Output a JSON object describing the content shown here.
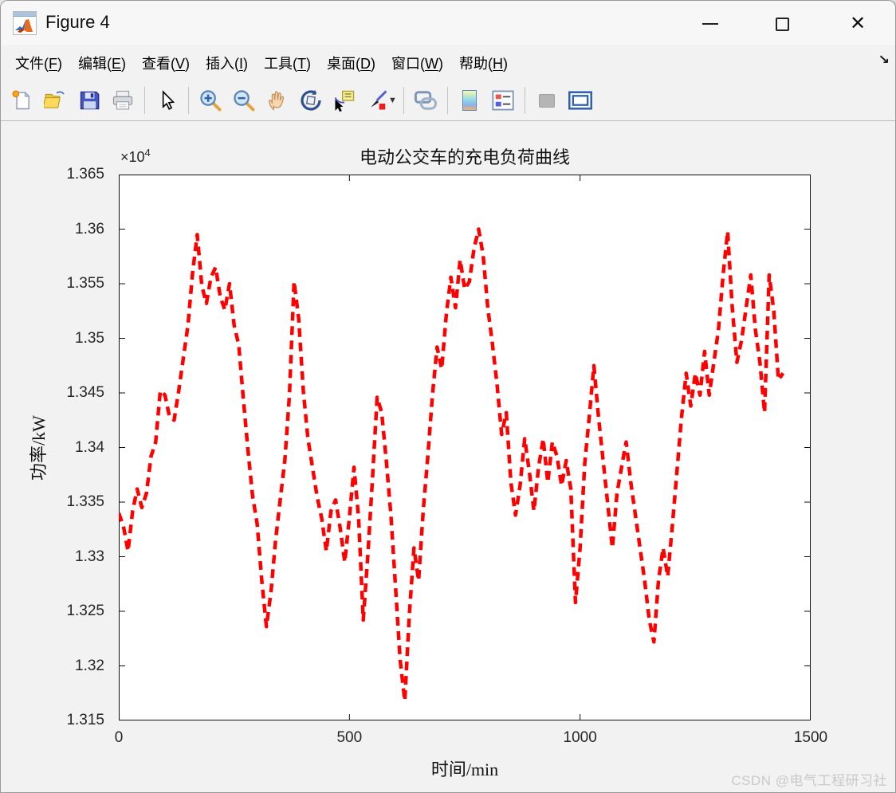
{
  "window": {
    "title": "Figure 4",
    "controls": {
      "minimize": "minimize",
      "maximize": "maximize",
      "close": "close",
      "dock": "dock-figure"
    }
  },
  "menu": {
    "items": [
      {
        "pre": "文件(",
        "key": "F",
        "post": ")"
      },
      {
        "pre": "编辑(",
        "key": "E",
        "post": ")"
      },
      {
        "pre": "查看(",
        "key": "V",
        "post": ")"
      },
      {
        "pre": "插入(",
        "key": "I",
        "post": ")"
      },
      {
        "pre": "工具(",
        "key": "T",
        "post": ")"
      },
      {
        "pre": "桌面(",
        "key": "D",
        "post": ")"
      },
      {
        "pre": "窗口(",
        "key": "W",
        "post": ")"
      },
      {
        "pre": "帮助(",
        "key": "H",
        "post": ")"
      }
    ]
  },
  "toolbar": {
    "icons": [
      "new-figure",
      "open-file",
      "save-figure",
      "print-figure",
      "edit-plot-pointer",
      "zoom-in",
      "zoom-out",
      "pan",
      "rotate-3d",
      "data-cursor",
      "brush-data",
      "brush-dropdown",
      "link-plot",
      "insert-colorbar",
      "insert-legend",
      "hide-plot-tools",
      "show-plot-tools"
    ]
  },
  "watermark": "CSDN @电气工程研习社",
  "chart_data": {
    "type": "line",
    "title": "电动公交车的充电负荷曲线",
    "xlabel": "时间/min",
    "ylabel": "功率/kW",
    "y_scale_note": "y values are power in units of 1e4 kW (axis exponent ×10^4)",
    "y_exponent_base": "×10",
    "y_exponent_power": "4",
    "xlim": [
      0,
      1500
    ],
    "ylim": [
      1.315,
      1.365
    ],
    "x_ticks": [
      0,
      500,
      1000,
      1500
    ],
    "x_tick_labels": [
      "0",
      "500",
      "1000",
      "1500"
    ],
    "y_ticks": [
      1.315,
      1.32,
      1.325,
      1.33,
      1.335,
      1.34,
      1.345,
      1.35,
      1.355,
      1.36,
      1.365
    ],
    "y_tick_labels": [
      "1.315",
      "1.32",
      "1.325",
      "1.33",
      "1.335",
      "1.34",
      "1.345",
      "1.35",
      "1.355",
      "1.36",
      "1.365"
    ],
    "grid": false,
    "legend": null,
    "line_color": "#ff0000",
    "line_style": "dashed",
    "line_width": 4.5,
    "x": [
      0,
      10,
      20,
      30,
      40,
      50,
      60,
      70,
      80,
      90,
      100,
      110,
      120,
      130,
      140,
      150,
      160,
      170,
      180,
      190,
      200,
      210,
      220,
      230,
      240,
      250,
      260,
      270,
      280,
      290,
      300,
      310,
      320,
      330,
      340,
      350,
      360,
      370,
      380,
      390,
      400,
      410,
      420,
      430,
      440,
      450,
      460,
      470,
      480,
      490,
      500,
      510,
      520,
      530,
      540,
      550,
      560,
      570,
      580,
      590,
      600,
      610,
      620,
      630,
      640,
      650,
      660,
      670,
      680,
      690,
      700,
      710,
      720,
      730,
      740,
      750,
      760,
      770,
      780,
      790,
      800,
      810,
      820,
      830,
      840,
      850,
      860,
      870,
      880,
      890,
      900,
      910,
      920,
      930,
      940,
      950,
      960,
      970,
      980,
      990,
      1000,
      1010,
      1020,
      1030,
      1040,
      1050,
      1060,
      1070,
      1080,
      1090,
      1100,
      1110,
      1120,
      1130,
      1140,
      1150,
      1160,
      1170,
      1180,
      1190,
      1200,
      1210,
      1220,
      1230,
      1240,
      1250,
      1260,
      1270,
      1280,
      1290,
      1300,
      1310,
      1320,
      1330,
      1340,
      1350,
      1360,
      1370,
      1380,
      1390,
      1400,
      1410,
      1420,
      1430,
      1440
    ],
    "y": [
      1.334,
      1.3328,
      1.3305,
      1.3342,
      1.3362,
      1.3345,
      1.3358,
      1.3392,
      1.3405,
      1.3452,
      1.3448,
      1.3428,
      1.3425,
      1.3452,
      1.3482,
      1.3512,
      1.356,
      1.3595,
      1.3548,
      1.3532,
      1.3556,
      1.3565,
      1.3538,
      1.3526,
      1.355,
      1.3512,
      1.3494,
      1.3445,
      1.3398,
      1.3356,
      1.333,
      1.3278,
      1.3236,
      1.3268,
      1.3315,
      1.3352,
      1.3388,
      1.3448,
      1.3552,
      1.3518,
      1.3452,
      1.3408,
      1.3382,
      1.3355,
      1.3335,
      1.3305,
      1.3342,
      1.3352,
      1.3326,
      1.3295,
      1.3336,
      1.3382,
      1.3335,
      1.3242,
      1.3302,
      1.3372,
      1.3446,
      1.3432,
      1.3388,
      1.3338,
      1.3272,
      1.3205,
      1.3168,
      1.3248,
      1.3308,
      1.3278,
      1.3342,
      1.3392,
      1.3448,
      1.3492,
      1.3472,
      1.3522,
      1.3556,
      1.3528,
      1.3572,
      1.3545,
      1.3552,
      1.3582,
      1.36,
      1.3576,
      1.3528,
      1.3495,
      1.3458,
      1.3412,
      1.3432,
      1.3368,
      1.3338,
      1.3365,
      1.3408,
      1.3378,
      1.3342,
      1.3382,
      1.3408,
      1.3368,
      1.3405,
      1.3392,
      1.3365,
      1.3388,
      1.3362,
      1.3258,
      1.3308,
      1.3385,
      1.3428,
      1.3475,
      1.3428,
      1.3388,
      1.3348,
      1.3308,
      1.3358,
      1.3382,
      1.3405,
      1.3368,
      1.3338,
      1.3308,
      1.3278,
      1.3242,
      1.3222,
      1.3278,
      1.3308,
      1.3282,
      1.3328,
      1.3378,
      1.3428,
      1.3468,
      1.3438,
      1.3468,
      1.3448,
      1.3488,
      1.3448,
      1.3478,
      1.3508,
      1.3558,
      1.3598,
      1.3528,
      1.3478,
      1.3498,
      1.3528,
      1.3558,
      1.3508,
      1.3478,
      1.3432,
      1.3558,
      1.3525,
      1.3462,
      1.3468
    ]
  }
}
